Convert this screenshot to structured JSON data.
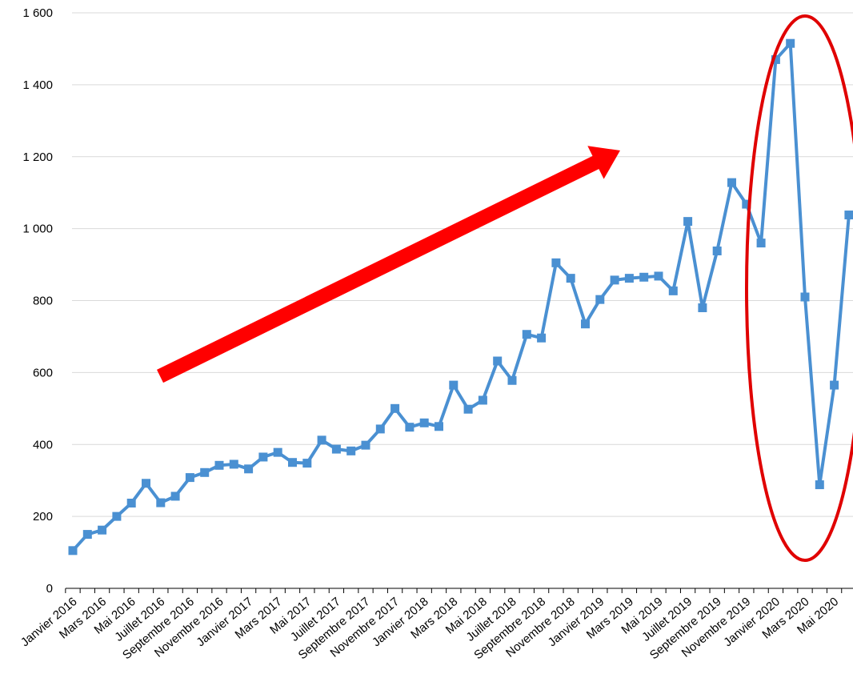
{
  "chart_data": {
    "type": "line",
    "title": "",
    "xlabel": "",
    "ylabel": "",
    "ylim": [
      0,
      1600
    ],
    "yticks": [
      0,
      200,
      400,
      600,
      800,
      1000,
      1200,
      1400,
      1600
    ],
    "ytick_labels": [
      "0",
      "200",
      "400",
      "600",
      "800",
      "1 000",
      "1 200",
      "1 400",
      "1 600"
    ],
    "grid": true,
    "legend": "none",
    "categories": [
      "Janvier 2016",
      "Février 2016",
      "Mars 2016",
      "Avril 2016",
      "Mai 2016",
      "Juin 2016",
      "Juillet 2016",
      "Août 2016",
      "Septembre 2016",
      "Octobre 2016",
      "Novembre 2016",
      "Décembre 2016",
      "Janvier 2017",
      "Février 2017",
      "Mars 2017",
      "Avril 2017",
      "Mai 2017",
      "Juin 2017",
      "Juillet 2017",
      "Août 2017",
      "Septembre 2017",
      "Octobre 2017",
      "Novembre 2017",
      "Décembre 2017",
      "Janvier 2018",
      "Février 2018",
      "Mars 2018",
      "Avril 2018",
      "Mai 2018",
      "Juin 2018",
      "Juillet 2018",
      "Août 2018",
      "Septembre 2018",
      "Octobre 2018",
      "Novembre 2018",
      "Décembre 2018",
      "Janvier 2019",
      "Février 2019",
      "Mars 2019",
      "Avril 2019",
      "Mai 2019",
      "Juin 2019",
      "Juillet 2019",
      "Août 2019",
      "Septembre 2019",
      "Octobre 2019",
      "Novembre 2019",
      "Décembre 2019",
      "Janvier 2020",
      "Février 2020",
      "Mars 2020",
      "Avril 2020",
      "Mai 2020",
      "Juin 2020"
    ],
    "shown_tick_labels": [
      "Janvier 2016",
      "Mars 2016",
      "Mai 2016",
      "Juillet 2016",
      "Septembre 2016",
      "Novembre 2016",
      "Janvier 2017",
      "Mars 2017",
      "Mai 2017",
      "Juillet 2017",
      "Septembre 2017",
      "Novembre 2017",
      "Janvier 2018",
      "Mars 2018",
      "Mai 2018",
      "Juillet 2018",
      "Septembre 2018",
      "Novembre 2018",
      "Janvier 2019",
      "Mars 2019",
      "Mai 2019",
      "Juillet 2019",
      "Septembre 2019",
      "Novembre 2019",
      "Janvier 2020",
      "Mars 2020",
      "Mai 2020"
    ],
    "series": [
      {
        "values": [
          105,
          150,
          162,
          200,
          237,
          292,
          238,
          256,
          308,
          322,
          342,
          345,
          332,
          365,
          378,
          350,
          348,
          412,
          387,
          382,
          398,
          443,
          500,
          448,
          460,
          450,
          565,
          498,
          523,
          632,
          578,
          706,
          696,
          905,
          862,
          735,
          803,
          857,
          862,
          865,
          868,
          827,
          1020,
          780,
          938,
          1128,
          1068,
          960,
          1470,
          1515,
          810,
          288,
          565,
          1038
        ],
        "color": "#4a90d2"
      }
    ],
    "annotations": [
      {
        "kind": "arrow",
        "color": "#ff0000",
        "direction": "up-right"
      },
      {
        "kind": "ellipse",
        "color": "#e00000",
        "fill": "none"
      }
    ]
  }
}
